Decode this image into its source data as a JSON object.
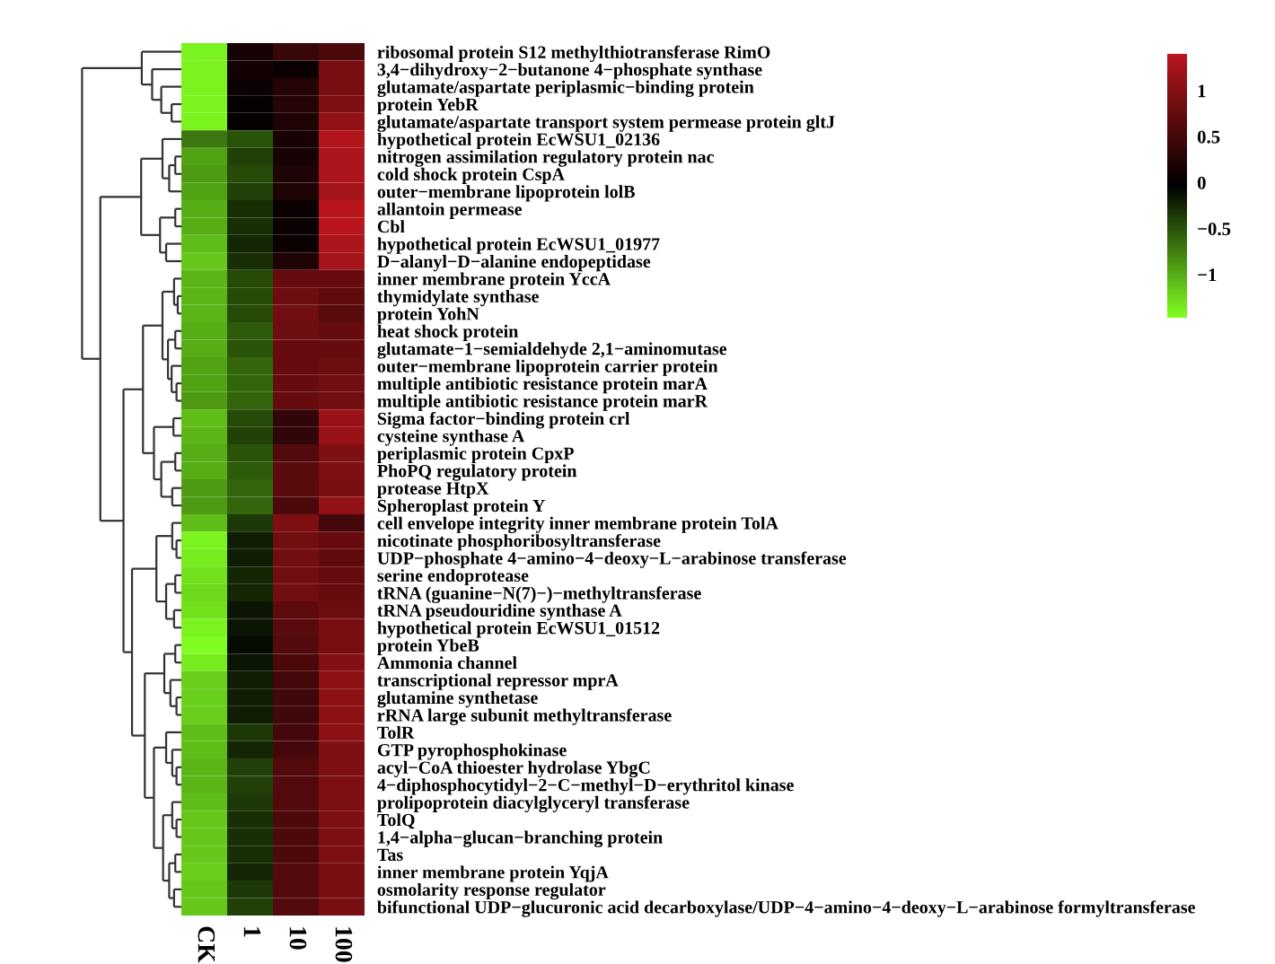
{
  "chart_data": {
    "type": "heatmap",
    "categories": [
      "CK",
      "1",
      "10",
      "100"
    ],
    "y_categories": [
      "ribosomal protein S12 methylthiotransferase RimO",
      "3,4−dihydroxy−2−butanone 4−phosphate synthase",
      "glutamate/aspartate periplasmic−binding protein",
      "protein YebR",
      "glutamate/aspartate transport system permease protein gltJ",
      "hypothetical protein EcWSU1_02136",
      "nitrogen assimilation regulatory protein nac",
      "cold shock protein CspA",
      "outer−membrane lipoprotein lolB",
      "allantoin permease",
      "Cbl",
      "hypothetical protein EcWSU1_01977",
      "D−alanyl−D−alanine endopeptidase",
      "inner membrane protein YccA",
      "thymidylate synthase",
      "protein YohN",
      "heat shock protein",
      "glutamate−1−semialdehyde 2,1−aminomutase",
      "outer−membrane lipoprotein carrier protein",
      "multiple antibiotic resistance protein marA",
      "multiple antibiotic resistance protein marR",
      "Sigma factor−binding protein crl",
      "cysteine synthase A",
      "periplasmic protein CpxP",
      "PhoPQ regulatory protein",
      "protease HtpX",
      "Spheroplast protein Y",
      "cell envelope integrity inner membrane protein TolA",
      "nicotinate phosphoribosyltransferase",
      "UDP−phosphate 4−amino−4−deoxy−L−arabinose transferase",
      "serine endoprotease",
      "tRNA (guanine−N(7)−)−methyltransferase",
      "tRNA pseudouridine synthase A",
      "hypothetical protein EcWSU1_01512",
      "protein YbeB",
      "Ammonia channel",
      "transcriptional repressor mprA",
      "glutamine synthetase",
      "rRNA large subunit methyltransferase",
      "TolR",
      "GTP pyrophosphokinase",
      "acyl−CoA thioester hydrolase YbgC",
      "4−diphosphocytidyl−2−C−methyl−D−erythritol kinase",
      "prolipoprotein diacylglyceryl transferase",
      "TolQ",
      "1,4−alpha−glucan−branching protein",
      "Tas",
      "inner membrane protein YqjA",
      "osmolarity response regulator",
      "bifunctional UDP−glucuronic acid decarboxylase/UDP−4−amino−4−deoxy−L−arabinose formyltransferase"
    ],
    "cells": [
      [
        -1.4,
        0.15,
        0.4,
        0.55
      ],
      [
        -1.4,
        0.1,
        0.05,
        0.9
      ],
      [
        -1.4,
        0.05,
        0.25,
        0.9
      ],
      [
        -1.4,
        0.0,
        0.25,
        0.95
      ],
      [
        -1.4,
        0.0,
        0.2,
        1.1
      ],
      [
        -0.7,
        -0.5,
        0.15,
        1.35
      ],
      [
        -0.95,
        -0.4,
        0.15,
        1.3
      ],
      [
        -0.9,
        -0.45,
        0.2,
        1.3
      ],
      [
        -0.95,
        -0.4,
        0.2,
        1.25
      ],
      [
        -1.0,
        -0.3,
        0.05,
        1.4
      ],
      [
        -1.0,
        -0.3,
        0.05,
        1.4
      ],
      [
        -1.1,
        -0.25,
        0.05,
        1.3
      ],
      [
        -1.15,
        -0.3,
        0.2,
        1.25
      ],
      [
        -1.05,
        -0.45,
        0.75,
        0.75
      ],
      [
        -1.05,
        -0.45,
        0.8,
        0.7
      ],
      [
        -1.05,
        -0.45,
        0.85,
        0.65
      ],
      [
        -1.0,
        -0.55,
        0.8,
        0.75
      ],
      [
        -1.0,
        -0.5,
        0.75,
        0.75
      ],
      [
        -0.95,
        -0.6,
        0.75,
        0.8
      ],
      [
        -0.95,
        -0.6,
        0.75,
        0.85
      ],
      [
        -0.9,
        -0.6,
        0.75,
        0.85
      ],
      [
        -1.1,
        -0.45,
        0.35,
        1.15
      ],
      [
        -1.05,
        -0.4,
        0.35,
        1.15
      ],
      [
        -1.0,
        -0.5,
        0.6,
        0.95
      ],
      [
        -1.0,
        -0.55,
        0.65,
        0.95
      ],
      [
        -0.9,
        -0.6,
        0.65,
        0.9
      ],
      [
        -0.9,
        -0.6,
        0.55,
        1.1
      ],
      [
        -1.1,
        -0.35,
        0.95,
        0.5
      ],
      [
        -1.4,
        -0.2,
        0.85,
        0.75
      ],
      [
        -1.35,
        -0.2,
        0.85,
        0.7
      ],
      [
        -1.3,
        -0.25,
        0.85,
        0.75
      ],
      [
        -1.25,
        -0.25,
        0.85,
        0.75
      ],
      [
        -1.3,
        -0.15,
        0.7,
        0.8
      ],
      [
        -1.4,
        -0.15,
        0.65,
        0.9
      ],
      [
        -1.45,
        -0.1,
        0.6,
        0.9
      ],
      [
        -1.35,
        -0.15,
        0.55,
        1.0
      ],
      [
        -1.2,
        -0.2,
        0.5,
        1.05
      ],
      [
        -1.2,
        -0.2,
        0.45,
        1.05
      ],
      [
        -1.2,
        -0.2,
        0.45,
        1.05
      ],
      [
        -1.1,
        -0.35,
        0.5,
        1.05
      ],
      [
        -1.1,
        -0.25,
        0.5,
        0.95
      ],
      [
        -1.05,
        -0.4,
        0.6,
        0.95
      ],
      [
        -1.05,
        -0.4,
        0.6,
        0.95
      ],
      [
        -1.1,
        -0.35,
        0.6,
        0.95
      ],
      [
        -1.15,
        -0.3,
        0.55,
        0.95
      ],
      [
        -1.15,
        -0.3,
        0.55,
        0.95
      ],
      [
        -1.15,
        -0.3,
        0.55,
        0.95
      ],
      [
        -1.2,
        -0.25,
        0.6,
        0.9
      ],
      [
        -1.15,
        -0.35,
        0.6,
        0.9
      ],
      [
        -1.15,
        -0.4,
        0.6,
        0.9
      ]
    ],
    "clim": [
      -1.47,
      1.4
    ],
    "cticks": [
      -1,
      -0.5,
      0,
      0.5,
      1
    ]
  }
}
